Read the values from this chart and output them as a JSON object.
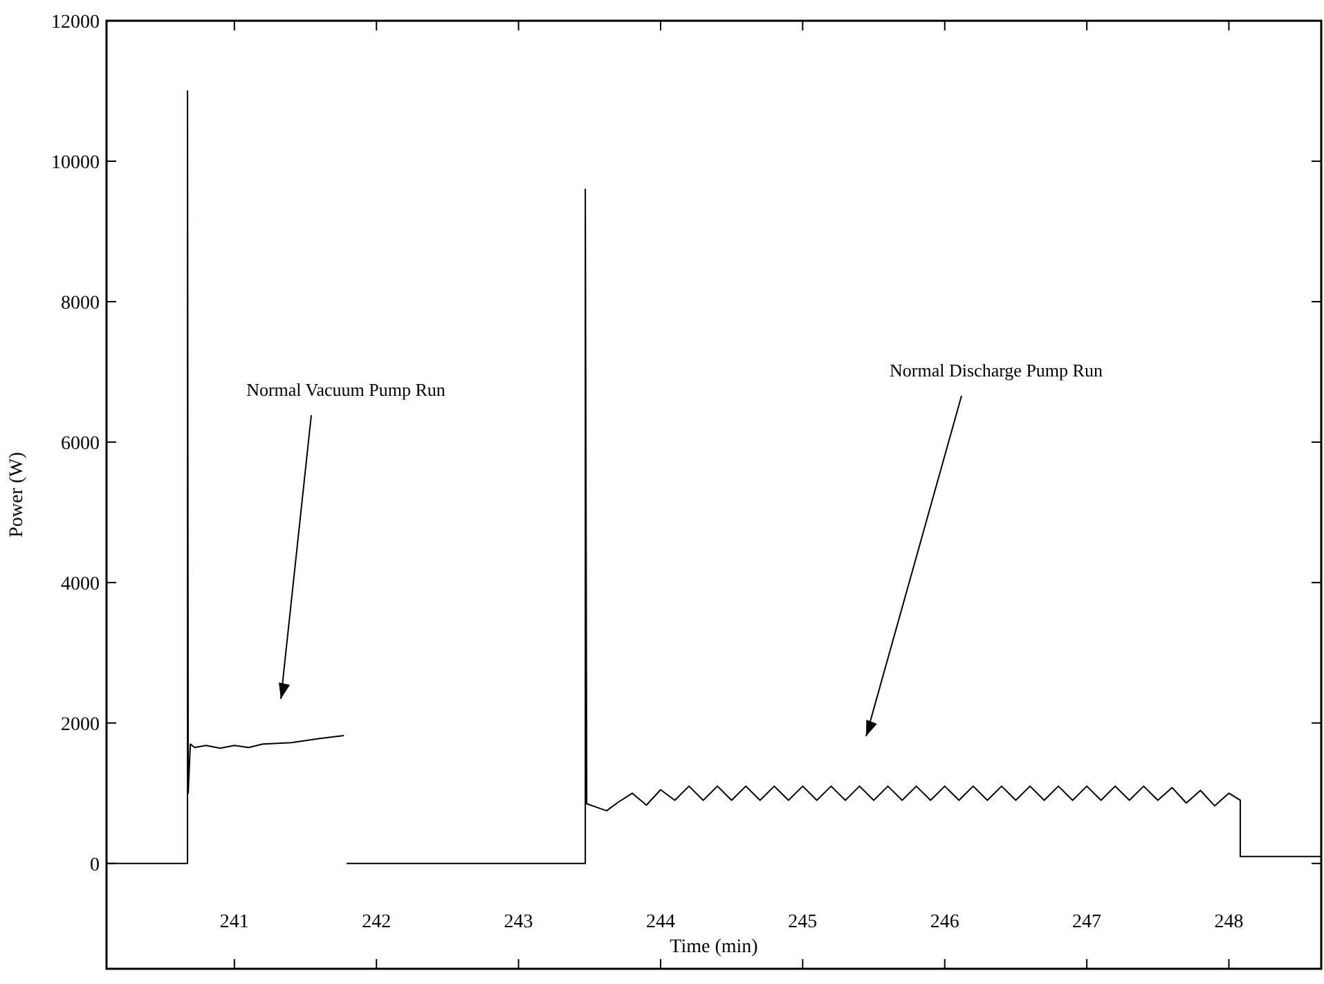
{
  "chart_data": {
    "type": "line",
    "xlabel": "Time (min)",
    "ylabel": "Power (W)",
    "xlim": [
      240.1,
      248.65
    ],
    "ylim": [
      -1500,
      12000
    ],
    "xticks": [
      241,
      242,
      243,
      244,
      245,
      246,
      247,
      248
    ],
    "yticks": [
      0,
      2000,
      4000,
      6000,
      8000,
      10000,
      12000
    ],
    "grid": false,
    "line_style": "solid",
    "annotations": [
      "Normal Vacuum Pump Run",
      "Normal Discharge Pump Run"
    ],
    "series": [
      {
        "color": "#000000",
        "x": [
          240.1,
          240.67,
          240.67,
          240.675,
          240.69,
          240.72,
          240.8,
          240.9,
          241.0,
          241.1,
          241.2,
          241.4,
          241.6,
          241.77,
          241.78,
          241.79,
          243.47,
          243.47,
          243.48,
          243.55,
          243.62,
          243.7,
          243.8,
          243.9,
          244.0,
          244.1,
          244.2,
          244.3,
          244.4,
          244.5,
          244.6,
          244.7,
          244.8,
          244.9,
          245.0,
          245.1,
          245.2,
          245.3,
          245.4,
          245.5,
          245.6,
          245.7,
          245.8,
          245.9,
          246.0,
          246.1,
          246.2,
          246.3,
          246.4,
          246.5,
          246.6,
          246.7,
          246.8,
          246.9,
          247.0,
          247.1,
          247.2,
          247.3,
          247.4,
          247.5,
          247.6,
          247.7,
          247.8,
          247.9,
          248.0,
          248.08,
          248.08,
          248.65
        ],
        "values": [
          0,
          0,
          11000,
          1000,
          1700,
          1650,
          1680,
          1640,
          1680,
          1650,
          1700,
          1720,
          1780,
          1820,
          null,
          0,
          0,
          9600,
          850,
          800,
          750,
          870,
          1000,
          830,
          1050,
          900,
          1100,
          900,
          1100,
          900,
          1100,
          900,
          1100,
          900,
          1100,
          900,
          1100,
          900,
          1100,
          900,
          1100,
          900,
          1100,
          900,
          1100,
          900,
          1100,
          900,
          1100,
          900,
          1100,
          900,
          1100,
          900,
          1100,
          900,
          1100,
          900,
          1100,
          900,
          1080,
          860,
          1040,
          820,
          1000,
          900,
          100,
          100
        ]
      }
    ]
  }
}
